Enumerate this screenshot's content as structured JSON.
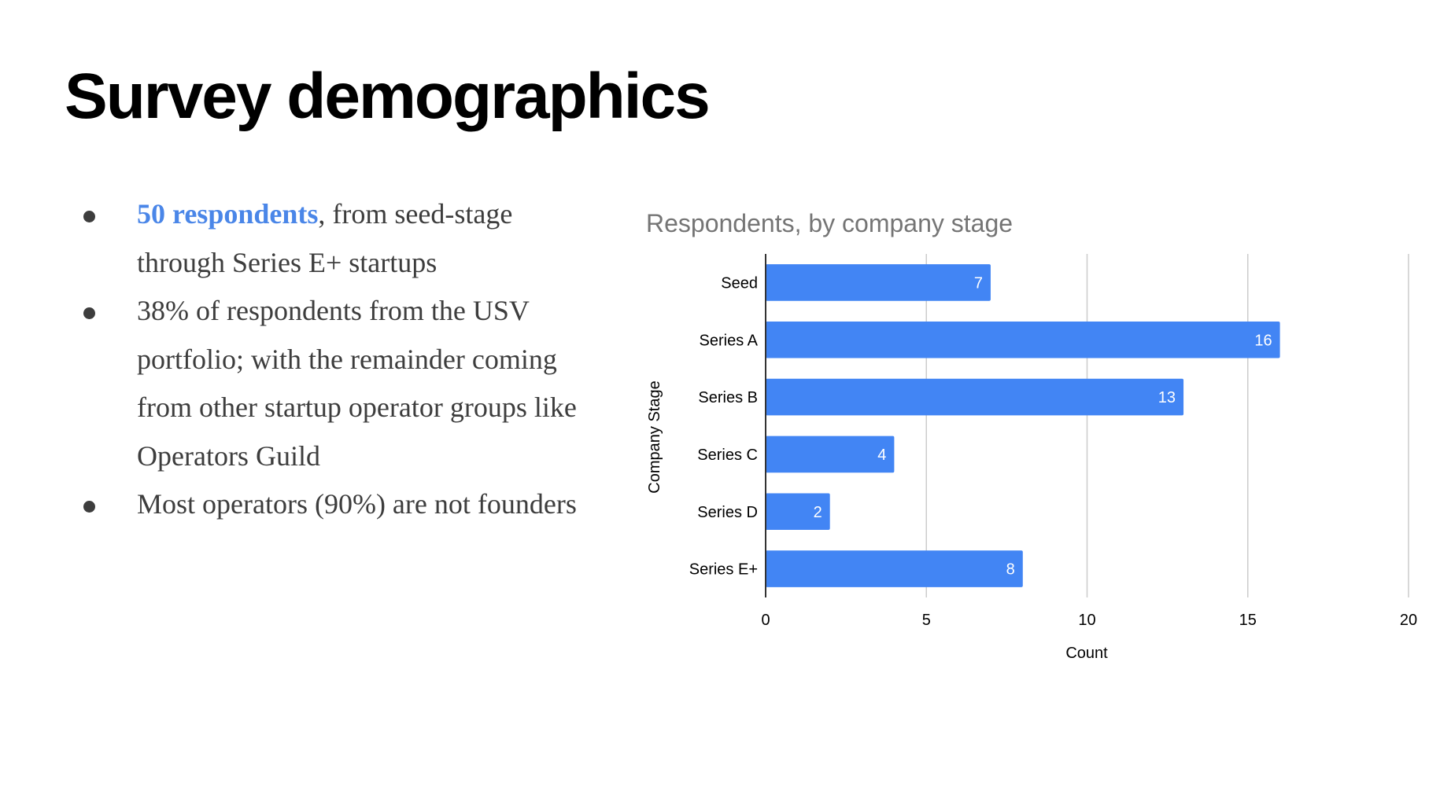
{
  "slide": {
    "title": "Survey demographics",
    "bullets": [
      {
        "highlight": "50 respondents",
        "text": ", from seed-stage through Series E+ startups"
      },
      {
        "highlight": "",
        "text": "38% of respondents from the USV portfolio; with the remainder coming from other startup operator groups like Operators Guild"
      },
      {
        "highlight": "",
        "text": "Most operators (90%) are not founders"
      }
    ]
  },
  "colors": {
    "bar": "#4285f4",
    "highlight": "#4a86e8",
    "gridline": "#cccccc",
    "axis": "#333333"
  },
  "chart_data": {
    "type": "bar",
    "orientation": "horizontal",
    "title": "Respondents, by company stage",
    "xlabel": "Count",
    "ylabel": "Company Stage",
    "categories": [
      "Seed",
      "Series A",
      "Series B",
      "Series C",
      "Series D",
      "Series E+"
    ],
    "values": [
      7,
      16,
      13,
      4,
      2,
      8
    ],
    "data_labels": [
      "7",
      "16",
      "13",
      "4",
      "2",
      "8"
    ],
    "xlim": [
      0,
      20
    ],
    "xticks": [
      0,
      5,
      10,
      15,
      20
    ],
    "xtick_labels": [
      "0",
      "5",
      "10",
      "15",
      "20"
    ],
    "grid": true,
    "legend": "none"
  }
}
